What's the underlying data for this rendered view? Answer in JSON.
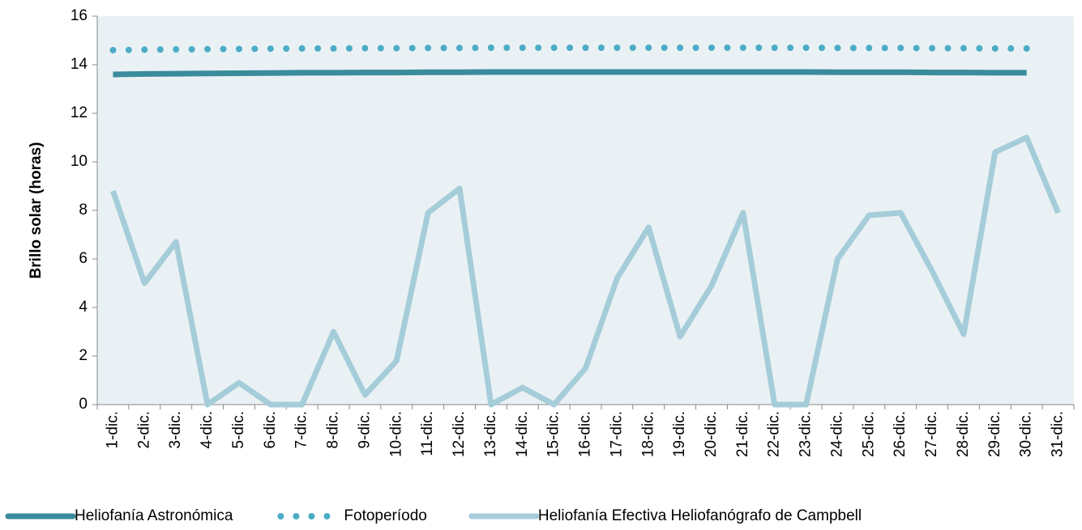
{
  "chart_data": {
    "type": "line",
    "y_label": "Brillo solar (horas)",
    "categories": [
      "1-dic.",
      "2-dic.",
      "3-dic.",
      "4-dic.",
      "5-dic.",
      "6-dic.",
      "7-dic.",
      "8-dic.",
      "9-dic.",
      "10-dic.",
      "11-dic.",
      "12-dic.",
      "13-dic.",
      "14-dic.",
      "15-dic.",
      "16-dic.",
      "17-dic.",
      "18-dic.",
      "19-dic.",
      "20-dic.",
      "21-dic.",
      "22-dic.",
      "23-dic.",
      "24-dic.",
      "25-dic.",
      "26-dic.",
      "27-dic.",
      "28-dic.",
      "29-dic.",
      "30-dic.",
      "31-dic."
    ],
    "series": [
      {
        "name": "Heliofanía Astronómica",
        "color": "#3a8b9c",
        "style": "solid",
        "values": [
          13.6,
          13.62,
          13.63,
          13.64,
          13.65,
          13.66,
          13.67,
          13.67,
          13.68,
          13.68,
          13.69,
          13.69,
          13.7,
          13.7,
          13.7,
          13.7,
          13.7,
          13.7,
          13.7,
          13.7,
          13.7,
          13.7,
          13.7,
          13.69,
          13.69,
          13.69,
          13.68,
          13.68,
          13.67,
          13.67,
          null
        ]
      },
      {
        "name": "Fotoperíodo",
        "color": "#4bacc6",
        "style": "dotted",
        "values": [
          14.6,
          14.62,
          14.63,
          14.64,
          14.65,
          14.66,
          14.67,
          14.67,
          14.68,
          14.68,
          14.69,
          14.69,
          14.7,
          14.7,
          14.7,
          14.7,
          14.7,
          14.7,
          14.7,
          14.7,
          14.7,
          14.7,
          14.7,
          14.69,
          14.69,
          14.69,
          14.68,
          14.68,
          14.67,
          14.67,
          null
        ]
      },
      {
        "name": "Heliofanía Efectiva Heliofanógrafo de Campbell",
        "color": "#a5cdd9",
        "style": "solid",
        "values": [
          8.8,
          5.0,
          6.7,
          0,
          0.9,
          0,
          0,
          3.0,
          0.4,
          1.8,
          7.9,
          8.9,
          0,
          0.7,
          0,
          1.5,
          5.2,
          7.3,
          2.8,
          4.9,
          7.9,
          0,
          0,
          6.0,
          7.8,
          7.9,
          5.5,
          2.9,
          10.4,
          11.0,
          7.9
        ]
      }
    ],
    "ylim": [
      0,
      16
    ],
    "yticks": [
      0,
      2,
      4,
      6,
      8,
      10,
      12,
      14,
      16
    ],
    "grid": false,
    "legend": "bottom"
  }
}
